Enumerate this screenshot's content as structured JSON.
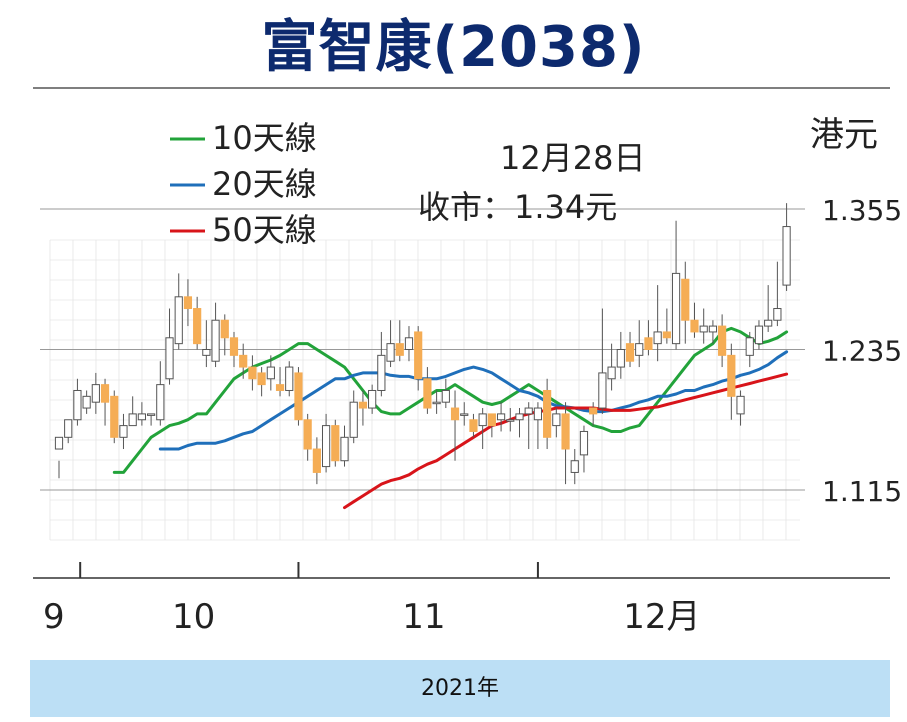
{
  "title": "富智康(2038)",
  "chart_data": {
    "type": "candlestick",
    "unit": "港元",
    "annotation": {
      "date": "12月28日",
      "close": "收市：1.34元"
    },
    "ylim": [
      1.055,
      1.375
    ],
    "yticks": [
      {
        "value": 1.115,
        "label": "1.115"
      },
      {
        "value": 1.235,
        "label": "1.235"
      },
      {
        "value": 1.355,
        "label": "1.355"
      }
    ],
    "xlabels": [
      {
        "label": "9",
        "i": 0
      },
      {
        "label": "10",
        "i": 14
      },
      {
        "label": "11",
        "i": 39
      },
      {
        "label": "12月",
        "i": 63
      }
    ],
    "xticks_at": [
      2.3,
      26,
      52
    ],
    "year_label": "2021年",
    "legend": [
      {
        "name": "10天線",
        "color": "#22a33a"
      },
      {
        "name": "20天線",
        "color": "#1f6fba"
      },
      {
        "name": "50天線",
        "color": "#d8141a"
      }
    ],
    "colors": {
      "up_fill": "#ffffff",
      "up_stroke": "#555555",
      "down_fill": "#f5ad55",
      "wick": "#555555",
      "grid": "#dddddd"
    },
    "candles": [
      [
        1.15,
        1.16,
        1.14,
        1.125
      ],
      [
        1.16,
        1.175,
        1.175,
        1.155
      ],
      [
        1.175,
        1.2,
        1.21,
        1.17
      ],
      [
        1.185,
        1.195,
        1.2,
        1.18
      ],
      [
        1.19,
        1.205,
        1.215,
        1.18
      ],
      [
        1.205,
        1.19,
        1.21,
        1.17
      ],
      [
        1.195,
        1.16,
        1.2,
        1.155
      ],
      [
        1.16,
        1.17,
        1.18,
        1.15
      ],
      [
        1.17,
        1.18,
        1.195,
        1.17
      ],
      [
        1.175,
        1.18,
        1.19,
        1.17
      ],
      [
        1.18,
        1.18,
        1.18,
        1.17
      ],
      [
        1.175,
        1.205,
        1.225,
        1.17
      ],
      [
        1.21,
        1.245,
        1.27,
        1.205
      ],
      [
        1.24,
        1.28,
        1.3,
        1.235
      ],
      [
        1.28,
        1.27,
        1.295,
        1.255
      ],
      [
        1.27,
        1.24,
        1.28,
        1.235
      ],
      [
        1.23,
        1.235,
        1.26,
        1.22
      ],
      [
        1.225,
        1.26,
        1.275,
        1.22
      ],
      [
        1.26,
        1.245,
        1.265,
        1.23
      ],
      [
        1.245,
        1.23,
        1.25,
        1.22
      ],
      [
        1.23,
        1.22,
        1.24,
        1.21
      ],
      [
        1.22,
        1.21,
        1.23,
        1.2
      ],
      [
        1.215,
        1.205,
        1.22,
        1.195
      ],
      [
        1.21,
        1.22,
        1.23,
        1.2
      ],
      [
        1.205,
        1.2,
        1.22,
        1.195
      ],
      [
        1.2,
        1.22,
        1.225,
        1.195
      ],
      [
        1.215,
        1.175,
        1.22,
        1.17
      ],
      [
        1.175,
        1.15,
        1.18,
        1.14
      ],
      [
        1.15,
        1.13,
        1.16,
        1.12
      ],
      [
        1.135,
        1.17,
        1.18,
        1.13
      ],
      [
        1.17,
        1.14,
        1.175,
        1.135
      ],
      [
        1.14,
        1.16,
        1.17,
        1.135
      ],
      [
        1.16,
        1.19,
        1.2,
        1.155
      ],
      [
        1.19,
        1.185,
        1.2,
        1.17
      ],
      [
        1.185,
        1.2,
        1.205,
        1.18
      ],
      [
        1.2,
        1.23,
        1.25,
        1.195
      ],
      [
        1.225,
        1.24,
        1.26,
        1.22
      ],
      [
        1.24,
        1.23,
        1.26,
        1.225
      ],
      [
        1.235,
        1.245,
        1.255,
        1.225
      ],
      [
        1.25,
        1.21,
        1.255,
        1.2
      ],
      [
        1.21,
        1.185,
        1.22,
        1.18
      ],
      [
        1.19,
        1.19,
        1.2,
        1.18
      ],
      [
        1.19,
        1.2,
        1.21,
        1.185
      ],
      [
        1.185,
        1.175,
        1.2,
        1.14
      ],
      [
        1.18,
        1.18,
        1.19,
        1.17
      ],
      [
        1.175,
        1.165,
        1.18,
        1.16
      ],
      [
        1.17,
        1.18,
        1.185,
        1.15
      ],
      [
        1.18,
        1.17,
        1.18,
        1.16
      ],
      [
        1.175,
        1.18,
        1.19,
        1.165
      ],
      [
        1.175,
        1.175,
        1.185,
        1.165
      ],
      [
        1.175,
        1.18,
        1.185,
        1.16
      ],
      [
        1.18,
        1.185,
        1.19,
        1.15
      ],
      [
        1.175,
        1.185,
        1.19,
        1.15
      ],
      [
        1.2,
        1.16,
        1.21,
        1.15
      ],
      [
        1.17,
        1.18,
        1.185,
        1.16
      ],
      [
        1.18,
        1.15,
        1.19,
        1.12
      ],
      [
        1.13,
        1.14,
        1.15,
        1.12
      ],
      [
        1.145,
        1.165,
        1.17,
        1.13
      ],
      [
        1.185,
        1.18,
        1.19,
        1.17
      ],
      [
        1.185,
        1.215,
        1.27,
        1.18
      ],
      [
        1.21,
        1.22,
        1.24,
        1.2
      ],
      [
        1.22,
        1.235,
        1.25,
        1.21
      ],
      [
        1.24,
        1.225,
        1.25,
        1.22
      ],
      [
        1.23,
        1.24,
        1.26,
        1.22
      ],
      [
        1.245,
        1.235,
        1.26,
        1.23
      ],
      [
        1.24,
        1.25,
        1.29,
        1.225
      ],
      [
        1.25,
        1.245,
        1.27,
        1.24
      ],
      [
        1.24,
        1.3,
        1.345,
        1.235
      ],
      [
        1.295,
        1.26,
        1.31,
        1.24
      ],
      [
        1.26,
        1.25,
        1.275,
        1.245
      ],
      [
        1.25,
        1.255,
        1.27,
        1.24
      ],
      [
        1.25,
        1.255,
        1.26,
        1.24
      ],
      [
        1.255,
        1.23,
        1.265,
        1.22
      ],
      [
        1.23,
        1.195,
        1.24,
        1.175
      ],
      [
        1.18,
        1.195,
        1.2,
        1.17
      ],
      [
        1.23,
        1.245,
        1.25,
        1.22
      ],
      [
        1.24,
        1.255,
        1.26,
        1.235
      ],
      [
        1.255,
        1.26,
        1.29,
        1.25
      ],
      [
        1.26,
        1.27,
        1.31,
        1.255
      ],
      [
        1.29,
        1.34,
        1.36,
        1.285
      ]
    ],
    "series": [
      {
        "name": "10天線",
        "values": [
          1.13,
          1.13,
          1.14,
          1.15,
          1.16,
          1.165,
          1.17,
          1.172,
          1.175,
          1.18,
          1.18,
          1.19,
          1.2,
          1.21,
          1.215,
          1.22,
          1.223,
          1.226,
          1.23,
          1.235,
          1.24,
          1.24,
          1.235,
          1.23,
          1.225,
          1.22,
          1.21,
          1.2,
          1.19,
          1.182,
          1.18,
          1.18,
          1.185,
          1.19,
          1.195,
          1.2,
          1.2,
          1.205,
          1.2,
          1.195,
          1.19,
          1.188,
          1.19,
          1.195,
          1.2,
          1.205,
          1.2,
          1.195,
          1.19,
          1.185,
          1.18,
          1.175,
          1.17,
          1.168,
          1.165,
          1.165,
          1.168,
          1.17,
          1.18,
          1.19,
          1.2,
          1.21,
          1.22,
          1.23,
          1.235,
          1.24,
          1.25,
          1.253,
          1.25,
          1.245,
          1.24,
          1.242,
          1.245,
          1.25
        ]
      },
      {
        "name": "20天線",
        "values": [
          1.15,
          1.15,
          1.15,
          1.153,
          1.155,
          1.155,
          1.155,
          1.157,
          1.16,
          1.163,
          1.165,
          1.17,
          1.175,
          1.18,
          1.185,
          1.19,
          1.195,
          1.2,
          1.205,
          1.21,
          1.21,
          1.213,
          1.215,
          1.215,
          1.215,
          1.213,
          1.212,
          1.212,
          1.21,
          1.21,
          1.21,
          1.212,
          1.215,
          1.218,
          1.22,
          1.218,
          1.215,
          1.21,
          1.205,
          1.2,
          1.198,
          1.195,
          1.19,
          1.187,
          1.186,
          1.185,
          1.183,
          1.182,
          1.182,
          1.183,
          1.185,
          1.187,
          1.19,
          1.192,
          1.195,
          1.195,
          1.197,
          1.2,
          1.2,
          1.203,
          1.205,
          1.208,
          1.21,
          1.213,
          1.215,
          1.218,
          1.222,
          1.228,
          1.233
        ]
      },
      {
        "name": "50天線",
        "values": [
          1.1,
          1.105,
          1.11,
          1.115,
          1.12,
          1.123,
          1.125,
          1.128,
          1.133,
          1.137,
          1.14,
          1.145,
          1.15,
          1.155,
          1.16,
          1.165,
          1.17,
          1.172,
          1.175,
          1.178,
          1.18,
          1.182,
          1.183,
          1.185,
          1.185,
          1.185,
          1.185,
          1.185,
          1.184,
          1.183,
          1.183,
          1.183,
          1.184,
          1.185,
          1.186,
          1.188,
          1.19,
          1.192,
          1.194,
          1.196,
          1.198,
          1.2,
          1.202,
          1.204,
          1.206,
          1.208,
          1.21,
          1.212,
          1.214
        ]
      }
    ]
  }
}
